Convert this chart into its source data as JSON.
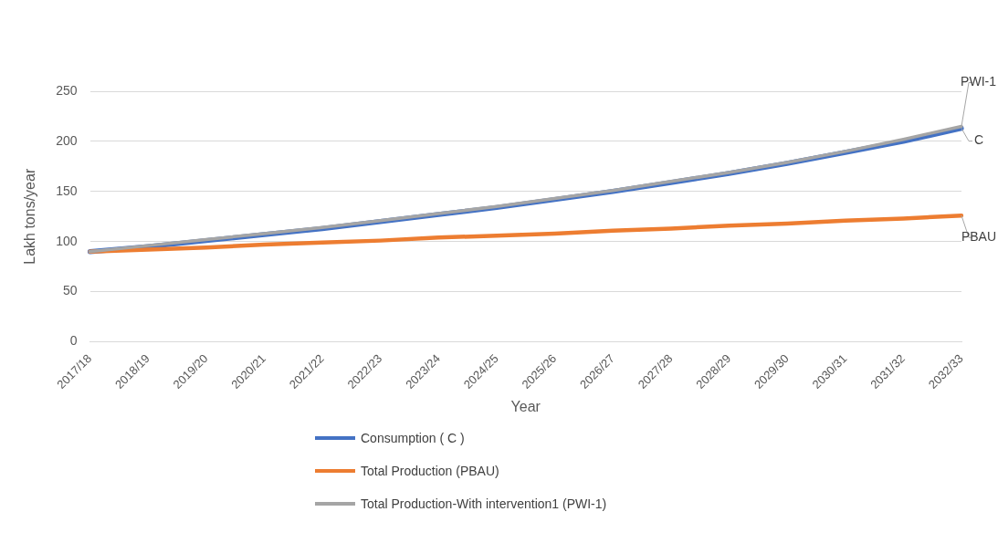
{
  "chart_data": {
    "type": "line",
    "xlabel": "Year",
    "ylabel": "Lakh tons/year",
    "categories": [
      "2017/18",
      "2018/19",
      "2019/20",
      "2020/21",
      "2021/22",
      "2022/23",
      "2023/24",
      "2024/25",
      "2025/26",
      "2026/27",
      "2027/28",
      "2028/29",
      "2029/30",
      "2030/31",
      "2031/32",
      "2032/33"
    ],
    "series": [
      {
        "name": "Consumption ( C )",
        "color": "#4472c4",
        "values": [
          90,
          95,
          101,
          107,
          113,
          120,
          127,
          134,
          142,
          150,
          159,
          168,
          178,
          189,
          200,
          213
        ]
      },
      {
        "name": "Total Production (PBAU)",
        "color": "#ed7d31",
        "values": [
          90,
          92,
          94,
          97,
          99,
          101,
          104,
          106,
          108,
          111,
          113,
          116,
          118,
          121,
          123,
          126
        ]
      },
      {
        "name": "Total Production-With intervention1 (PWI-1)",
        "color": "#a5a5a5",
        "values": [
          90,
          96,
          102,
          108,
          114,
          121,
          128,
          135,
          143,
          151,
          160,
          169,
          179,
          190,
          202,
          215
        ]
      }
    ],
    "ylim": [
      0,
      250
    ],
    "yticks": [
      0,
      50,
      100,
      150,
      200,
      250
    ],
    "grid": "y",
    "legend": "bottom",
    "marker": "none",
    "line_style": "solid",
    "annotations": [
      {
        "text": "PWI-1",
        "x": "2032/33",
        "y": 215
      },
      {
        "text": "C",
        "x": "2032/33",
        "y": 213
      },
      {
        "text": "PBAU",
        "x": "2032/33",
        "y": 126
      }
    ]
  }
}
